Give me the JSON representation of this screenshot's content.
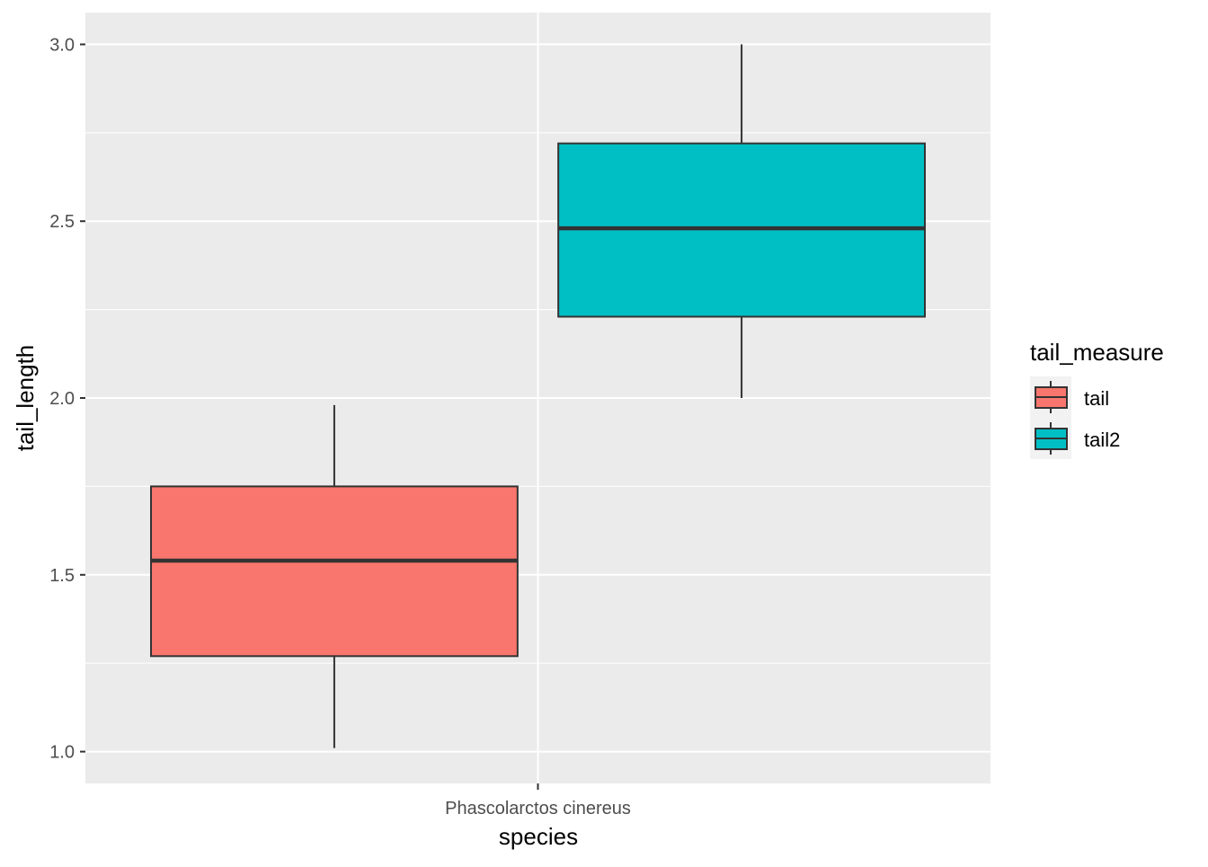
{
  "chart_data": {
    "type": "boxplot",
    "title": "",
    "xlabel": "species",
    "ylabel": "tail_length",
    "categories": [
      "Phascolarctos cinereus"
    ],
    "ylim": [
      0.91,
      3.09
    ],
    "yticks": [
      1.0,
      1.5,
      2.0,
      2.5,
      3.0
    ],
    "ytick_labels": [
      "1.0",
      "1.5",
      "2.0",
      "2.5",
      "3.0"
    ],
    "grid": true,
    "legend": {
      "title": "tail_measure",
      "position": "right",
      "entries": [
        "tail",
        "tail2"
      ]
    },
    "series": [
      {
        "name": "tail",
        "color": "#F8766D",
        "category": "Phascolarctos cinereus",
        "whisker_low": 1.01,
        "q1": 1.27,
        "median": 1.54,
        "q3": 1.75,
        "whisker_high": 1.98
      },
      {
        "name": "tail2",
        "color": "#00BFC4",
        "category": "Phascolarctos cinereus",
        "whisker_low": 2.0,
        "q1": 2.23,
        "median": 2.48,
        "q3": 2.72,
        "whisker_high": 3.0
      }
    ]
  }
}
